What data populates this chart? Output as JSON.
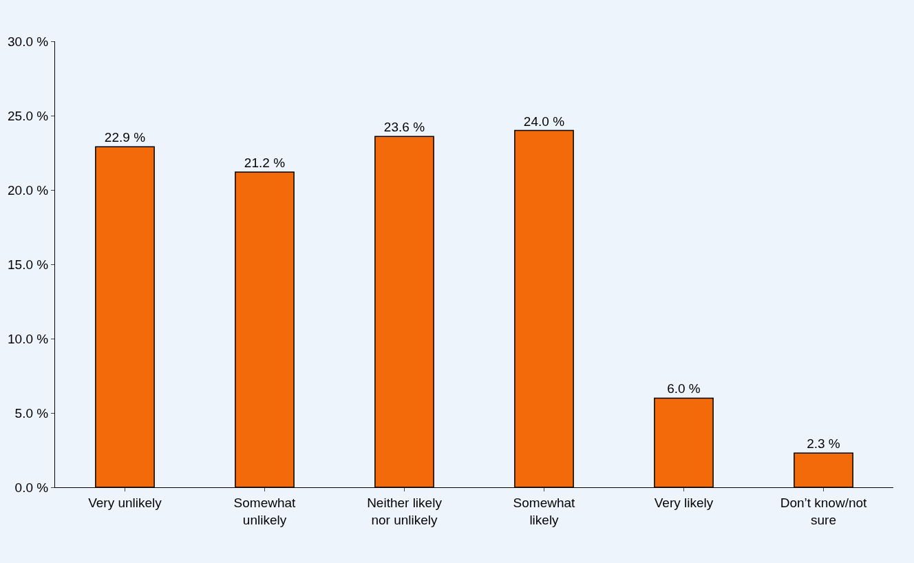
{
  "chart_data": {
    "type": "bar",
    "categories": [
      "Very unlikely",
      "Somewhat unlikely",
      "Neither likely nor unlikely",
      "Somewhat likely",
      "Very likely",
      "Don’t know/not sure"
    ],
    "values": [
      22.9,
      21.2,
      23.6,
      24.0,
      6.0,
      2.3
    ],
    "value_labels": [
      "22.9 %",
      "21.2 %",
      "23.6 %",
      "24.0 %",
      "6.0 %",
      "2.3 %"
    ],
    "color": "#f26a0a",
    "ylim": [
      0,
      30
    ],
    "yticks": [
      {
        "value": 0,
        "label": "0.0 %"
      },
      {
        "value": 5,
        "label": "5.0 %"
      },
      {
        "value": 10,
        "label": "10.0 %"
      },
      {
        "value": 15,
        "label": "15.0 %"
      },
      {
        "value": 20,
        "label": "20.0 %"
      },
      {
        "value": 25,
        "label": "25.0 %"
      },
      {
        "value": 30,
        "label": "30.0 %"
      }
    ],
    "grid": false,
    "legend": false
  }
}
